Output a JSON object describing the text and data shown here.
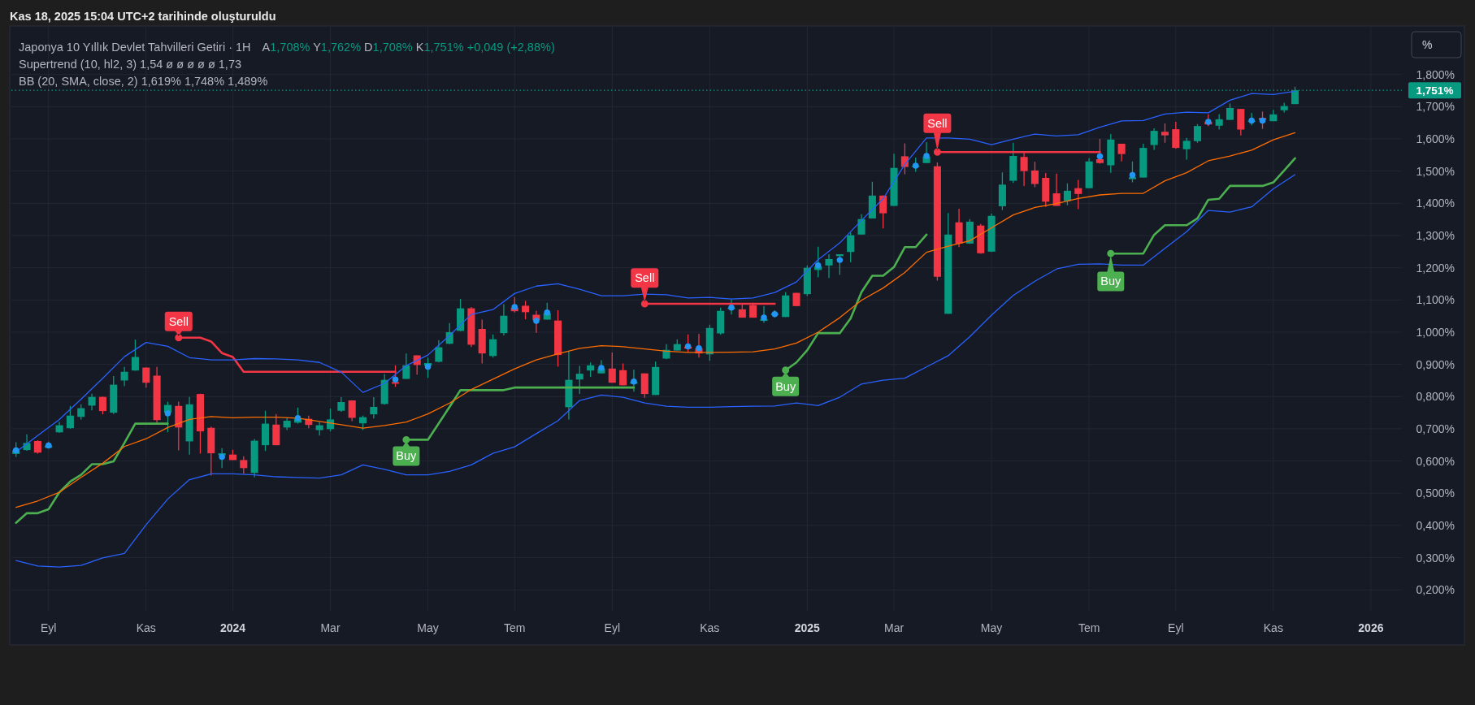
{
  "chart_data": {
    "type": "candlestick",
    "title": "Japonya 10 Yıllık Devlet Tahvilleri Getiri · 1H",
    "subtitle": "A1,708% Y1,762% D1,708% K1,751% +0,049 (+2,88%)",
    "annotations": [
      "Supertrend (10, hl2, 3) 1,54 ø ø ø ø ø 1,73",
      "BB (20, SMA, close, 2) 1,619% 1,748% 1,489%",
      "Kas 18, 2025 15:04 UTC+2 tarihinde oluşturuldu",
      "%",
      {
        "text": "Sell",
        "x": "2023-11-27",
        "y": 0.983
      },
      {
        "text": "Buy",
        "x": "2024-04-22",
        "y": 0.666
      },
      {
        "text": "Sell",
        "x": "2024-09-23",
        "y": 1.088
      },
      {
        "text": "Buy",
        "x": "2024-12-23",
        "y": 0.882
      },
      {
        "text": "Sell",
        "x": "2025-03-31",
        "y": 1.559
      },
      {
        "text": "Buy",
        "x": "2025-07-21",
        "y": 1.244
      }
    ],
    "x": [
      "2023-08-14",
      "2023-08-21",
      "2023-08-28",
      "2023-09-04",
      "2023-09-11",
      "2023-09-18",
      "2023-09-25",
      "2023-10-02",
      "2023-10-09",
      "2023-10-16",
      "2023-10-23",
      "2023-10-30",
      "2023-11-06",
      "2023-11-13",
      "2023-11-20",
      "2023-11-27",
      "2023-12-04",
      "2023-12-11",
      "2023-12-18",
      "2023-12-25",
      "2024-01-01",
      "2024-01-08",
      "2024-01-15",
      "2024-01-22",
      "2024-01-29",
      "2024-02-05",
      "2024-02-12",
      "2024-02-19",
      "2024-02-26",
      "2024-03-04",
      "2024-03-11",
      "2024-03-18",
      "2024-03-25",
      "2024-04-01",
      "2024-04-08",
      "2024-04-15",
      "2024-04-22",
      "2024-04-29",
      "2024-05-06",
      "2024-05-13",
      "2024-05-20",
      "2024-05-27",
      "2024-06-03",
      "2024-06-10",
      "2024-06-17",
      "2024-06-24",
      "2024-07-01",
      "2024-07-08",
      "2024-07-15",
      "2024-07-22",
      "2024-07-29",
      "2024-08-05",
      "2024-08-12",
      "2024-08-19",
      "2024-08-26",
      "2024-09-02",
      "2024-09-09",
      "2024-09-16",
      "2024-09-23",
      "2024-09-30",
      "2024-10-07",
      "2024-10-14",
      "2024-10-21",
      "2024-10-28",
      "2024-11-04",
      "2024-11-11",
      "2024-11-18",
      "2024-11-25",
      "2024-12-02",
      "2024-12-09",
      "2024-12-16",
      "2024-12-23",
      "2024-12-30",
      "2025-01-06",
      "2025-01-13",
      "2025-01-20",
      "2025-01-27",
      "2025-02-03",
      "2025-02-10",
      "2025-02-17",
      "2025-02-24",
      "2025-03-03",
      "2025-03-10",
      "2025-03-17",
      "2025-03-24",
      "2025-03-31",
      "2025-04-07",
      "2025-04-14",
      "2025-04-21",
      "2025-04-28",
      "2025-05-05",
      "2025-05-12",
      "2025-05-19",
      "2025-05-26",
      "2025-06-02",
      "2025-06-09",
      "2025-06-16",
      "2025-06-23",
      "2025-06-30",
      "2025-07-07",
      "2025-07-14",
      "2025-07-21",
      "2025-07-28",
      "2025-08-04",
      "2025-08-11",
      "2025-08-18",
      "2025-08-25",
      "2025-09-01",
      "2025-09-08",
      "2025-09-15",
      "2025-09-22",
      "2025-09-29",
      "2025-10-06",
      "2025-10-13",
      "2025-10-20",
      "2025-10-27",
      "2025-11-03",
      "2025-11-10",
      "2025-11-17"
    ],
    "ohlc": [
      [
        0.622,
        0.658,
        0.613,
        0.633
      ],
      [
        0.634,
        0.683,
        0.632,
        0.656
      ],
      [
        0.662,
        0.664,
        0.623,
        0.626
      ],
      [
        0.641,
        0.66,
        0.639,
        0.648
      ],
      [
        0.689,
        0.721,
        0.688,
        0.711
      ],
      [
        0.702,
        0.771,
        0.7,
        0.741
      ],
      [
        0.737,
        0.776,
        0.728,
        0.764
      ],
      [
        0.772,
        0.809,
        0.757,
        0.799
      ],
      [
        0.799,
        0.8,
        0.745,
        0.755
      ],
      [
        0.75,
        0.864,
        0.746,
        0.837
      ],
      [
        0.85,
        0.892,
        0.832,
        0.877
      ],
      [
        0.881,
        0.977,
        0.88,
        0.923
      ],
      [
        0.89,
        0.891,
        0.828,
        0.843
      ],
      [
        0.865,
        0.892,
        0.718,
        0.727
      ],
      [
        0.75,
        0.784,
        0.689,
        0.774
      ],
      [
        0.771,
        0.784,
        0.633,
        0.704
      ],
      [
        0.661,
        0.799,
        0.62,
        0.776
      ],
      [
        0.808,
        0.809,
        0.623,
        0.692
      ],
      [
        0.703,
        0.707,
        0.555,
        0.624
      ],
      [
        0.618,
        0.64,
        0.578,
        0.624
      ],
      [
        0.62,
        0.635,
        0.603,
        0.603
      ],
      [
        0.603,
        0.615,
        0.561,
        0.578
      ],
      [
        0.563,
        0.668,
        0.549,
        0.663
      ],
      [
        0.649,
        0.756,
        0.631,
        0.716
      ],
      [
        0.713,
        0.746,
        0.649,
        0.649
      ],
      [
        0.704,
        0.734,
        0.696,
        0.725
      ],
      [
        0.719,
        0.766,
        0.716,
        0.731
      ],
      [
        0.731,
        0.741,
        0.702,
        0.712
      ],
      [
        0.696,
        0.721,
        0.679,
        0.711
      ],
      [
        0.699,
        0.763,
        0.692,
        0.729
      ],
      [
        0.756,
        0.798,
        0.753,
        0.783
      ],
      [
        0.788,
        0.789,
        0.724,
        0.734
      ],
      [
        0.717,
        0.741,
        0.696,
        0.736
      ],
      [
        0.745,
        0.798,
        0.732,
        0.768
      ],
      [
        0.777,
        0.87,
        0.775,
        0.852
      ],
      [
        0.845,
        0.897,
        0.83,
        0.84
      ],
      [
        0.855,
        0.934,
        0.855,
        0.897
      ],
      [
        0.928,
        0.928,
        0.868,
        0.898
      ],
      [
        0.896,
        0.921,
        0.858,
        0.904
      ],
      [
        0.908,
        0.975,
        0.906,
        0.953
      ],
      [
        0.964,
        1.028,
        0.963,
        1.0
      ],
      [
        1.004,
        1.103,
        1.003,
        1.074
      ],
      [
        1.074,
        1.078,
        0.954,
        0.961
      ],
      [
        1.01,
        1.039,
        0.903,
        0.934
      ],
      [
        0.926,
        0.993,
        0.921,
        0.978
      ],
      [
        0.997,
        1.087,
        0.99,
        1.051
      ],
      [
        1.076,
        1.109,
        1.061,
        1.065
      ],
      [
        1.082,
        1.097,
        1.04,
        1.062
      ],
      [
        1.054,
        1.066,
        0.998,
        1.037
      ],
      [
        1.039,
        1.091,
        1.039,
        1.059
      ],
      [
        1.036,
        1.068,
        0.893,
        0.929
      ],
      [
        0.767,
        0.941,
        0.729,
        0.852
      ],
      [
        0.853,
        0.895,
        0.808,
        0.871
      ],
      [
        0.881,
        0.906,
        0.861,
        0.897
      ],
      [
        0.872,
        0.913,
        0.872,
        0.887
      ],
      [
        0.887,
        0.937,
        0.843,
        0.843
      ],
      [
        0.882,
        0.903,
        0.835,
        0.835
      ],
      [
        0.84,
        0.884,
        0.815,
        0.846
      ],
      [
        0.872,
        0.872,
        0.796,
        0.808
      ],
      [
        0.805,
        0.909,
        0.805,
        0.892
      ],
      [
        0.918,
        0.963,
        0.916,
        0.945
      ],
      [
        0.943,
        0.978,
        0.943,
        0.963
      ],
      [
        0.955,
        0.993,
        0.937,
        0.949
      ],
      [
        0.95,
        0.995,
        0.921,
        0.934
      ],
      [
        0.931,
        1.023,
        0.911,
        1.013
      ],
      [
        0.996,
        1.076,
        0.992,
        1.066
      ],
      [
        1.072,
        1.101,
        1.055,
        1.076
      ],
      [
        1.071,
        1.088,
        1.045,
        1.045
      ],
      [
        1.084,
        1.091,
        1.045,
        1.045
      ],
      [
        1.035,
        1.081,
        1.029,
        1.041
      ],
      [
        1.053,
        1.068,
        1.046,
        1.058
      ],
      [
        1.047,
        1.124,
        1.047,
        1.114
      ],
      [
        1.122,
        1.122,
        1.081,
        1.081
      ],
      [
        1.118,
        1.207,
        1.112,
        1.2
      ],
      [
        1.193,
        1.265,
        1.17,
        1.204
      ],
      [
        1.207,
        1.242,
        1.168,
        1.227
      ],
      [
        1.236,
        1.242,
        1.178,
        1.242
      ],
      [
        1.249,
        1.309,
        1.217,
        1.301
      ],
      [
        1.303,
        1.366,
        1.303,
        1.351
      ],
      [
        1.353,
        1.467,
        1.353,
        1.424
      ],
      [
        1.424,
        1.424,
        1.322,
        1.369
      ],
      [
        1.392,
        1.554,
        1.392,
        1.51
      ],
      [
        1.546,
        1.586,
        1.49,
        1.513
      ],
      [
        1.513,
        1.542,
        1.498,
        1.517
      ],
      [
        1.525,
        1.59,
        1.525,
        1.545
      ],
      [
        1.515,
        1.527,
        1.16,
        1.172
      ],
      [
        1.057,
        1.37,
        1.057,
        1.303
      ],
      [
        1.341,
        1.383,
        1.264,
        1.275
      ],
      [
        1.275,
        1.351,
        1.274,
        1.343
      ],
      [
        1.331,
        1.336,
        1.243,
        1.245
      ],
      [
        1.25,
        1.368,
        1.249,
        1.361
      ],
      [
        1.391,
        1.496,
        1.379,
        1.458
      ],
      [
        1.47,
        1.588,
        1.463,
        1.547
      ],
      [
        1.544,
        1.558,
        1.454,
        1.5
      ],
      [
        1.502,
        1.529,
        1.45,
        1.46
      ],
      [
        1.479,
        1.494,
        1.389,
        1.405
      ],
      [
        1.431,
        1.492,
        1.392,
        1.392
      ],
      [
        1.407,
        1.462,
        1.394,
        1.439
      ],
      [
        1.447,
        1.473,
        1.382,
        1.429
      ],
      [
        1.447,
        1.54,
        1.447,
        1.53
      ],
      [
        1.537,
        1.6,
        1.523,
        1.525
      ],
      [
        1.518,
        1.615,
        1.495,
        1.598
      ],
      [
        1.585,
        1.585,
        1.53,
        1.553
      ],
      [
        1.475,
        1.53,
        1.465,
        1.481
      ],
      [
        1.48,
        1.585,
        1.48,
        1.572
      ],
      [
        1.581,
        1.633,
        1.566,
        1.625
      ],
      [
        1.622,
        1.648,
        1.588,
        1.611
      ],
      [
        1.63,
        1.653,
        1.57,
        1.572
      ],
      [
        1.568,
        1.603,
        1.536,
        1.594
      ],
      [
        1.593,
        1.646,
        1.588,
        1.64
      ],
      [
        1.653,
        1.676,
        1.64,
        1.645
      ],
      [
        1.641,
        1.677,
        1.629,
        1.661
      ],
      [
        1.659,
        1.71,
        1.659,
        1.696
      ],
      [
        1.693,
        1.693,
        1.611,
        1.629
      ],
      [
        1.653,
        1.681,
        1.642,
        1.656
      ],
      [
        1.665,
        1.685,
        1.631,
        1.659
      ],
      [
        1.655,
        1.69,
        1.655,
        1.676
      ],
      [
        1.689,
        1.712,
        1.682,
        1.702
      ],
      [
        1.708,
        1.762,
        1.708,
        1.751
      ]
    ],
    "series": [
      {
        "type": "line",
        "color": "#4caf50",
        "values": [
          0.408,
          0.438,
          0.438,
          0.45,
          0.503,
          0.536,
          0.557,
          0.59,
          0.59,
          0.599,
          0.656,
          0.716,
          0.716,
          0.716,
          0.716,
          null,
          null,
          null,
          null,
          null,
          null,
          null,
          null,
          null,
          null,
          null,
          null,
          null,
          null,
          null,
          null,
          null,
          null,
          null,
          null,
          null,
          0.666,
          0.666,
          0.666,
          0.717,
          0.768,
          0.82,
          0.82,
          0.82,
          0.82,
          0.82,
          0.828,
          0.828,
          0.828,
          0.828,
          0.828,
          0.828,
          0.828,
          0.828,
          0.828,
          0.828,
          0.828,
          0.828,
          null,
          null,
          null,
          null,
          null,
          null,
          null,
          null,
          null,
          null,
          null,
          null,
          null,
          0.882,
          0.906,
          0.944,
          0.997,
          0.997,
          0.997,
          1.043,
          1.124,
          1.175,
          1.175,
          1.202,
          1.264,
          1.264,
          1.303,
          null,
          null,
          null,
          null,
          null,
          null,
          null,
          null,
          null,
          null,
          null,
          null,
          null,
          null,
          null,
          null,
          1.244,
          1.244,
          1.244,
          1.244,
          1.302,
          1.332,
          1.332,
          1.332,
          1.353,
          1.411,
          1.414,
          1.454,
          1.454,
          1.454,
          1.454,
          1.465,
          1.502,
          1.54
        ]
      },
      {
        "type": "line",
        "color": "#f23645",
        "values": [
          null,
          null,
          null,
          null,
          null,
          null,
          null,
          null,
          null,
          null,
          null,
          null,
          null,
          null,
          null,
          0.983,
          0.983,
          0.983,
          0.971,
          0.935,
          0.923,
          0.877,
          0.877,
          0.877,
          0.877,
          0.877,
          0.877,
          0.877,
          0.877,
          0.877,
          0.877,
          0.877,
          0.877,
          0.877,
          0.877,
          0.877,
          null,
          null,
          null,
          null,
          null,
          null,
          null,
          null,
          null,
          null,
          null,
          null,
          null,
          null,
          null,
          null,
          null,
          null,
          null,
          null,
          null,
          null,
          1.088,
          1.088,
          1.088,
          1.088,
          1.088,
          1.088,
          1.088,
          1.088,
          1.088,
          1.088,
          1.088,
          1.088,
          1.088,
          null,
          null,
          null,
          null,
          null,
          null,
          null,
          null,
          null,
          null,
          null,
          null,
          null,
          null,
          1.559,
          1.559,
          1.559,
          1.559,
          1.559,
          1.559,
          1.559,
          1.559,
          1.559,
          1.559,
          1.559,
          1.559,
          1.559,
          1.559,
          1.559,
          1.559,
          null,
          null,
          null,
          null,
          null,
          null,
          null,
          null,
          null,
          null,
          null,
          null,
          null,
          null,
          null,
          null,
          null,
          null
        ]
      },
      {
        "type": "line",
        "color": "#ff6d00",
        "x": [
          "2023-08-14",
          "2023-08-28",
          "2023-09-11",
          "2023-09-25",
          "2023-10-09",
          "2023-10-23",
          "2023-11-06",
          "2023-11-20",
          "2023-12-04",
          "2023-12-18",
          "2024-01-01",
          "2024-01-15",
          "2024-01-29",
          "2024-02-12",
          "2024-02-26",
          "2024-03-11",
          "2024-03-25",
          "2024-04-08",
          "2024-04-22",
          "2024-05-06",
          "2024-05-20",
          "2024-06-03",
          "2024-06-17",
          "2024-07-01",
          "2024-07-15",
          "2024-07-29",
          "2024-08-12",
          "2024-08-26",
          "2024-09-09",
          "2024-09-23",
          "2024-10-07",
          "2024-10-21",
          "2024-11-04",
          "2024-11-18",
          "2024-12-02",
          "2024-12-16",
          "2024-12-30",
          "2025-01-13",
          "2025-01-27",
          "2025-02-10",
          "2025-02-24",
          "2025-03-10",
          "2025-03-24",
          "2025-04-07",
          "2025-04-21",
          "2025-05-05",
          "2025-05-19",
          "2025-06-02",
          "2025-06-16",
          "2025-06-30",
          "2025-07-14",
          "2025-07-28",
          "2025-08-11",
          "2025-08-25",
          "2025-09-08",
          "2025-09-22",
          "2025-10-06",
          "2025-10-20",
          "2025-11-03",
          "2025-11-17"
        ],
        "values": [
          0.456,
          0.476,
          0.503,
          0.549,
          0.593,
          0.645,
          0.669,
          0.704,
          0.729,
          0.738,
          0.734,
          0.736,
          0.736,
          0.733,
          0.723,
          0.713,
          0.702,
          0.71,
          0.721,
          0.746,
          0.78,
          0.822,
          0.854,
          0.886,
          0.914,
          0.933,
          0.95,
          0.958,
          0.955,
          0.948,
          0.941,
          0.937,
          0.937,
          0.938,
          0.939,
          0.948,
          0.966,
          1.0,
          1.045,
          1.099,
          1.137,
          1.185,
          1.248,
          1.267,
          1.284,
          1.324,
          1.364,
          1.387,
          1.399,
          1.415,
          1.426,
          1.431,
          1.431,
          1.47,
          1.495,
          1.532,
          1.547,
          1.565,
          1.597,
          1.619
        ]
      },
      {
        "type": "line",
        "color": "#2962ff",
        "x": [
          "2023-08-14",
          "2023-08-28",
          "2023-09-11",
          "2023-09-25",
          "2023-10-09",
          "2023-10-23",
          "2023-11-06",
          "2023-11-20",
          "2023-12-04",
          "2023-12-18",
          "2024-01-01",
          "2024-01-15",
          "2024-01-29",
          "2024-02-12",
          "2024-02-26",
          "2024-03-11",
          "2024-03-25",
          "2024-04-08",
          "2024-04-22",
          "2024-05-06",
          "2024-05-20",
          "2024-06-03",
          "2024-06-17",
          "2024-07-01",
          "2024-07-15",
          "2024-07-29",
          "2024-08-12",
          "2024-08-26",
          "2024-09-09",
          "2024-09-23",
          "2024-10-07",
          "2024-10-21",
          "2024-11-04",
          "2024-11-18",
          "2024-12-02",
          "2024-12-16",
          "2024-12-30",
          "2025-01-13",
          "2025-01-27",
          "2025-02-10",
          "2025-02-24",
          "2025-03-10",
          "2025-03-24",
          "2025-04-07",
          "2025-04-21",
          "2025-05-05",
          "2025-05-19",
          "2025-06-02",
          "2025-06-16",
          "2025-06-30",
          "2025-07-14",
          "2025-07-28",
          "2025-08-11",
          "2025-08-25",
          "2025-09-08",
          "2025-09-22",
          "2025-10-06",
          "2025-10-20",
          "2025-11-03",
          "2025-11-17"
        ],
        "values": [
          0.628,
          0.679,
          0.729,
          0.792,
          0.857,
          0.924,
          0.968,
          0.956,
          0.921,
          0.914,
          0.914,
          0.918,
          0.917,
          0.914,
          0.906,
          0.876,
          0.813,
          0.841,
          0.896,
          0.929,
          0.99,
          1.055,
          1.07,
          1.12,
          1.143,
          1.15,
          1.133,
          1.113,
          1.113,
          1.118,
          1.116,
          1.106,
          1.108,
          1.103,
          1.106,
          1.123,
          1.156,
          1.225,
          1.277,
          1.347,
          1.414,
          1.521,
          1.603,
          1.603,
          1.599,
          1.582,
          1.599,
          1.615,
          1.609,
          1.613,
          1.636,
          1.656,
          1.657,
          1.677,
          1.683,
          1.681,
          1.72,
          1.741,
          1.738,
          1.748
        ]
      },
      {
        "type": "line",
        "color": "#2962ff",
        "x": [
          "2023-08-14",
          "2023-08-28",
          "2023-09-11",
          "2023-09-25",
          "2023-10-09",
          "2023-10-23",
          "2023-11-06",
          "2023-11-20",
          "2023-12-04",
          "2023-12-18",
          "2024-01-01",
          "2024-01-15",
          "2024-01-29",
          "2024-02-12",
          "2024-02-26",
          "2024-03-11",
          "2024-03-25",
          "2024-04-08",
          "2024-04-22",
          "2024-05-06",
          "2024-05-20",
          "2024-06-03",
          "2024-06-17",
          "2024-07-01",
          "2024-07-15",
          "2024-07-29",
          "2024-08-12",
          "2024-08-26",
          "2024-09-09",
          "2024-09-23",
          "2024-10-07",
          "2024-10-21",
          "2024-11-04",
          "2024-11-18",
          "2024-12-02",
          "2024-12-16",
          "2024-12-30",
          "2025-01-13",
          "2025-01-27",
          "2025-02-10",
          "2025-02-24",
          "2025-03-10",
          "2025-03-24",
          "2025-04-07",
          "2025-04-21",
          "2025-05-05",
          "2025-05-19",
          "2025-06-02",
          "2025-06-16",
          "2025-06-30",
          "2025-07-14",
          "2025-07-28",
          "2025-08-11",
          "2025-08-25",
          "2025-09-08",
          "2025-09-22",
          "2025-10-06",
          "2025-10-20",
          "2025-11-03",
          "2025-11-17"
        ],
        "values": [
          0.291,
          0.274,
          0.271,
          0.276,
          0.299,
          0.313,
          0.402,
          0.482,
          0.542,
          0.56,
          0.56,
          0.557,
          0.551,
          0.549,
          0.547,
          0.557,
          0.588,
          0.574,
          0.557,
          0.557,
          0.568,
          0.588,
          0.624,
          0.644,
          0.685,
          0.725,
          0.788,
          0.805,
          0.798,
          0.78,
          0.77,
          0.767,
          0.767,
          0.769,
          0.77,
          0.771,
          0.78,
          0.772,
          0.798,
          0.839,
          0.851,
          0.857,
          0.892,
          0.927,
          0.986,
          1.053,
          1.114,
          1.158,
          1.196,
          1.211,
          1.212,
          1.208,
          1.208,
          1.26,
          1.312,
          1.378,
          1.373,
          1.389,
          1.445,
          1.489
        ]
      },
      {
        "type": "scatter",
        "color": "#2196f3",
        "marker": "circle",
        "x": [
          "2023-08-14",
          "2023-09-04",
          "2023-11-20",
          "2023-12-25",
          "2024-02-12",
          "2024-04-15",
          "2024-05-06",
          "2024-07-01",
          "2024-07-15",
          "2024-07-22",
          "2024-08-26",
          "2024-09-16",
          "2024-10-21",
          "2024-10-28",
          "2024-11-18",
          "2024-12-09",
          "2024-12-16",
          "2025-01-13",
          "2025-01-27",
          "2025-03-17",
          "2025-03-24",
          "2025-07-14",
          "2025-08-04",
          "2025-09-22",
          "2025-10-20",
          "2025-10-27"
        ],
        "values": [
          0.633,
          0.648,
          0.748,
          0.613,
          0.733,
          0.853,
          0.893,
          1.078,
          1.035,
          1.061,
          0.889,
          0.847,
          0.956,
          0.95,
          1.076,
          1.045,
          1.056,
          1.207,
          1.224,
          1.517,
          1.547,
          1.546,
          1.488,
          1.653,
          1.657,
          1.657
        ]
      }
    ],
    "xlim": [
      "2023-08-11",
      "2026-01-25"
    ],
    "xticks": [
      {
        "value": "2023-09-04",
        "label": "Eyl"
      },
      {
        "value": "2023-11-06",
        "label": "Kas"
      },
      {
        "value": "2024-01-01",
        "label": "2024"
      },
      {
        "value": "2024-03-04",
        "label": "Mar"
      },
      {
        "value": "2024-05-06",
        "label": "May"
      },
      {
        "value": "2024-07-01",
        "label": "Tem"
      },
      {
        "value": "2024-09-02",
        "label": "Eyl"
      },
      {
        "value": "2024-11-04",
        "label": "Kas"
      },
      {
        "value": "2025-01-06",
        "label": "2025"
      },
      {
        "value": "2025-03-03",
        "label": "Mar"
      },
      {
        "value": "2025-05-05",
        "label": "May"
      },
      {
        "value": "2025-07-07",
        "label": "Tem"
      },
      {
        "value": "2025-09-01",
        "label": "Eyl"
      },
      {
        "value": "2025-11-03",
        "label": "Kas"
      },
      {
        "value": "2026-01-05",
        "label": "2026"
      }
    ],
    "ylim": [
      0.135,
      1.948
    ],
    "yticks": [
      {
        "value": 0.2,
        "label": "0,200%"
      },
      {
        "value": 0.3,
        "label": "0,300%"
      },
      {
        "value": 0.4,
        "label": "0,400%"
      },
      {
        "value": 0.5,
        "label": "0,500%"
      },
      {
        "value": 0.6,
        "label": "0,600%"
      },
      {
        "value": 0.7,
        "label": "0,700%"
      },
      {
        "value": 0.8,
        "label": "0,800%"
      },
      {
        "value": 0.9,
        "label": "0,900%"
      },
      {
        "value": 1.0,
        "label": "1,000%"
      },
      {
        "value": 1.1,
        "label": "1,100%"
      },
      {
        "value": 1.2,
        "label": "1,200%"
      },
      {
        "value": 1.3,
        "label": "1,300%"
      },
      {
        "value": 1.4,
        "label": "1,400%"
      },
      {
        "value": 1.5,
        "label": "1,500%"
      },
      {
        "value": 1.6,
        "label": "1,600%"
      },
      {
        "value": 1.7,
        "label": "1,700%"
      },
      {
        "value": 1.8,
        "label": "1,800%"
      }
    ],
    "grid": true,
    "ref_lines": [
      {
        "axis": "y",
        "value": 1.751,
        "label": "1,751%",
        "color": "#089981",
        "line_style": "dotted"
      }
    ]
  }
}
